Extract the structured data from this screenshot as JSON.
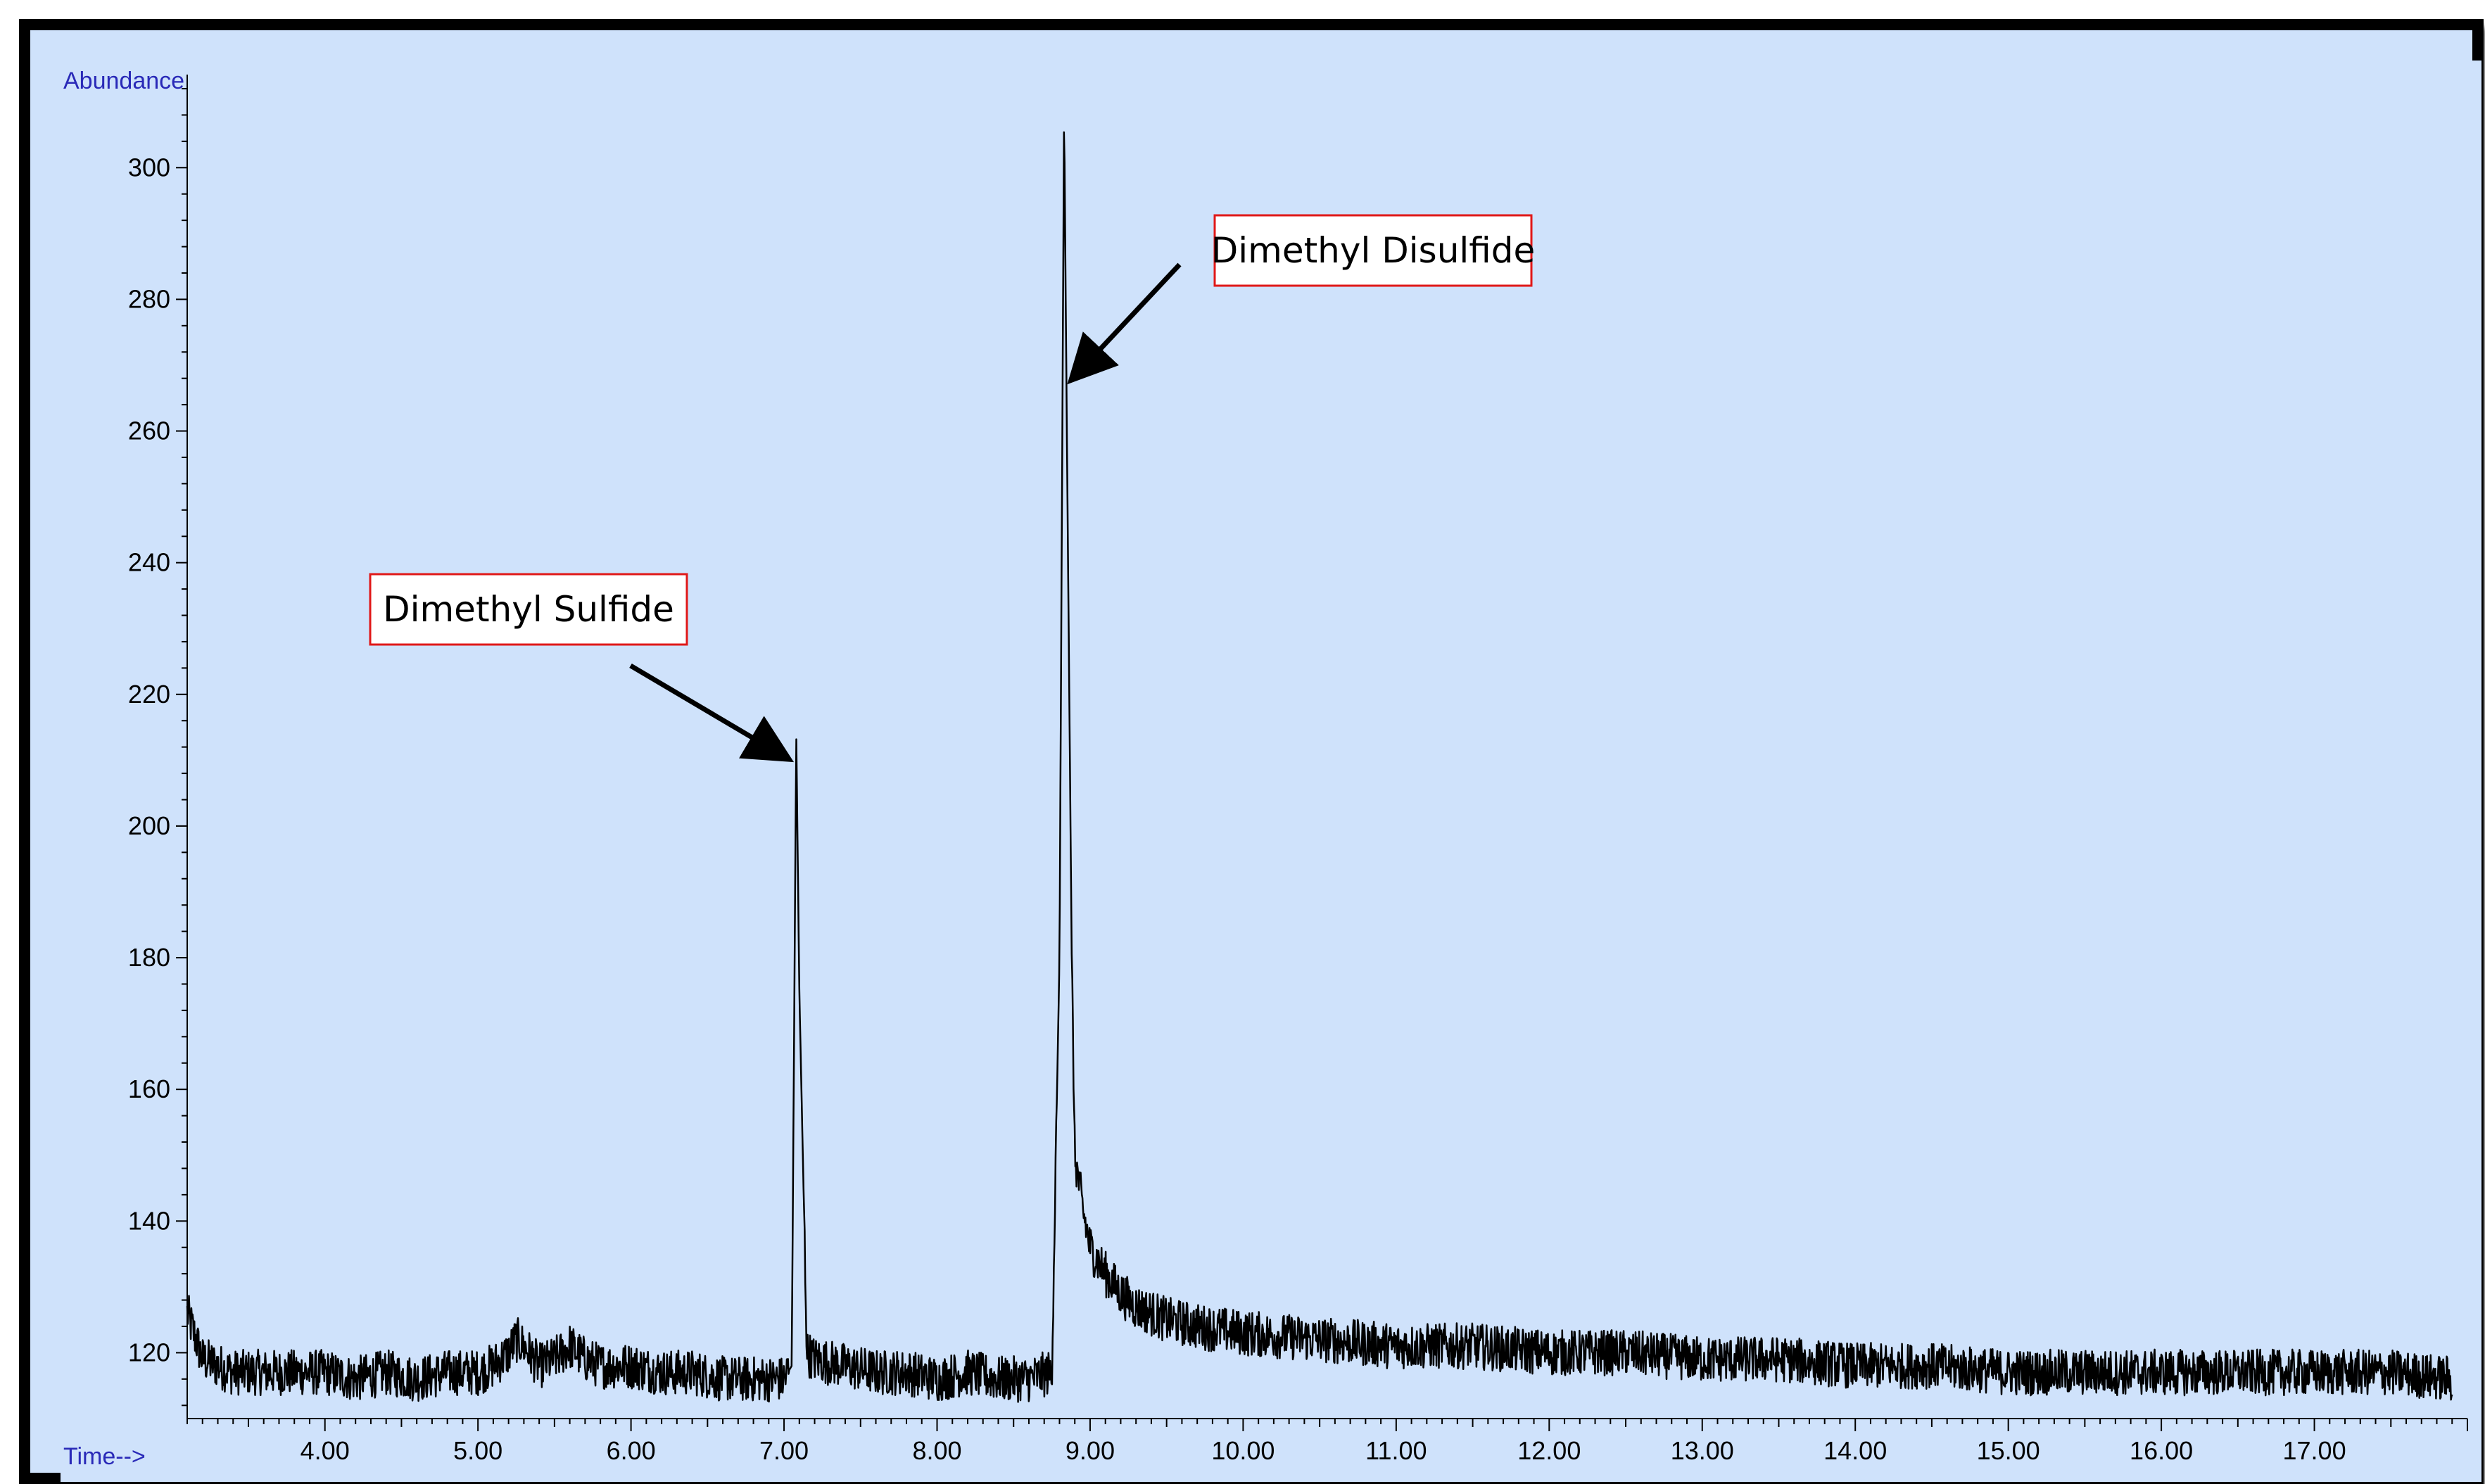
{
  "chart_data": {
    "type": "line",
    "title": "",
    "xlabel": "Time-->",
    "ylabel": "Abundance",
    "xlim": [
      3.1,
      18.0
    ],
    "ylim": [
      110,
      312
    ],
    "grid": false,
    "x_ticks": [
      4.0,
      5.0,
      6.0,
      7.0,
      8.0,
      9.0,
      10.0,
      11.0,
      12.0,
      13.0,
      14.0,
      15.0,
      16.0,
      17.0
    ],
    "x_tick_labels": [
      "4.00",
      "5.00",
      "6.00",
      "7.00",
      "8.00",
      "9.00",
      "10.00",
      "11.00",
      "12.00",
      "13.00",
      "14.00",
      "15.00",
      "16.00",
      "17.00"
    ],
    "y_ticks": [
      120,
      140,
      160,
      180,
      200,
      220,
      240,
      260,
      280,
      300
    ],
    "y_tick_labels": [
      "120",
      "140",
      "160",
      "180",
      "200",
      "220",
      "240",
      "260",
      "280",
      "300"
    ],
    "series": [
      {
        "x": [
          3.1,
          3.2,
          3.4,
          3.6,
          3.8,
          4.0,
          4.2,
          4.4,
          4.6,
          4.8,
          5.0,
          5.1,
          5.2,
          5.25,
          5.3,
          5.4,
          5.5,
          5.6,
          5.7,
          5.8,
          6.0,
          6.2,
          6.4,
          6.6,
          6.8,
          7.0,
          7.05,
          7.08,
          7.1,
          7.15,
          7.2,
          7.4,
          7.6,
          7.8,
          8.0,
          8.2,
          8.4,
          8.6,
          8.75,
          8.8,
          8.83,
          8.85,
          8.88,
          8.9,
          8.95,
          9.0,
          9.1,
          9.2,
          9.3,
          9.5,
          9.7,
          10.0,
          10.5,
          11.0,
          11.5,
          12.0,
          12.5,
          13.0,
          13.5,
          14.0,
          14.5,
          15.0,
          15.5,
          16.0,
          16.5,
          17.0,
          17.5,
          17.9
        ],
        "values": [
          126,
          119,
          117,
          117,
          117,
          117,
          116,
          117,
          116,
          117,
          117,
          118,
          120,
          122,
          121,
          118,
          119,
          121,
          119,
          118,
          118,
          117,
          117,
          116,
          116,
          116,
          118,
          214,
          175,
          120,
          119,
          118,
          117,
          117,
          116,
          117,
          116,
          116,
          117,
          180,
          309,
          255,
          180,
          150,
          142,
          136,
          132,
          129,
          127,
          125,
          124,
          123,
          122,
          121,
          121,
          120,
          120,
          119,
          119,
          118,
          118,
          117,
          117,
          117,
          117,
          117,
          117,
          116
        ]
      }
    ],
    "annotations": [
      {
        "text": "Dimethyl Sulfide",
        "x": 7.08,
        "y": 214
      },
      {
        "text": "Dimethyl Disulfide",
        "x": 8.83,
        "y": 309
      }
    ]
  }
}
